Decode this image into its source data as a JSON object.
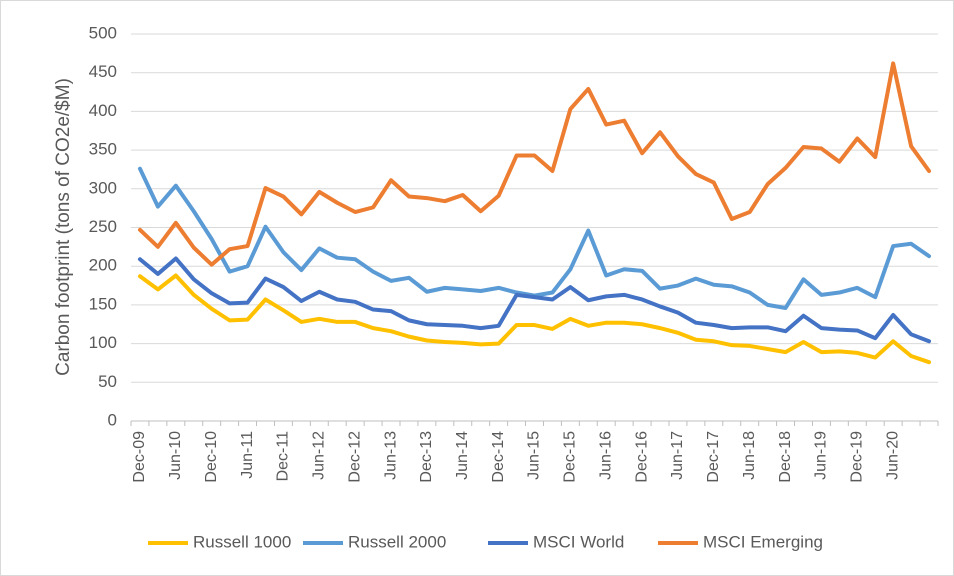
{
  "chart_data": {
    "type": "line",
    "y_label": "Carbon footprint (tons of CO2e/$M)",
    "categories": [
      "Dec-09",
      null,
      "Jun-10",
      null,
      "Dec-10",
      null,
      "Jun-11",
      null,
      "Dec-11",
      null,
      "Jun-12",
      null,
      "Dec-12",
      null,
      "Jun-13",
      null,
      "Dec-13",
      null,
      "Jun-14",
      null,
      "Dec-14",
      null,
      "Jun-15",
      null,
      "Dec-15",
      null,
      "Jun-16",
      null,
      "Dec-16",
      null,
      "Jun-17",
      null,
      "Dec-17",
      null,
      "Jun-18",
      null,
      "Dec-18",
      null,
      "Jun-19",
      null,
      "Dec-19",
      null,
      "Jun-20",
      null,
      null
    ],
    "series": [
      {
        "name": "Russell 1000",
        "color": "#FFC000",
        "values": [
          187,
          170,
          188,
          163,
          145,
          130,
          131,
          157,
          143,
          128,
          132,
          128,
          128,
          120,
          116,
          109,
          104,
          102,
          101,
          99,
          100,
          124,
          124,
          119,
          132,
          123,
          127,
          127,
          125,
          120,
          114,
          105,
          103,
          98,
          97,
          93,
          89,
          102,
          89,
          90,
          88,
          82,
          103,
          84,
          76
        ]
      },
      {
        "name": "Russell 2000",
        "color": "#5B9BD5",
        "values": [
          326,
          277,
          304,
          271,
          235,
          193,
          200,
          251,
          218,
          195,
          223,
          211,
          209,
          193,
          181,
          185,
          167,
          172,
          170,
          168,
          172,
          166,
          162,
          166,
          196,
          246,
          188,
          196,
          194,
          171,
          175,
          184,
          176,
          174,
          166,
          150,
          146,
          183,
          163,
          166,
          172,
          160,
          226,
          229,
          213
        ]
      },
      {
        "name": "MSCI World",
        "color": "#4472C4",
        "values": [
          209,
          190,
          210,
          183,
          165,
          152,
          153,
          184,
          173,
          155,
          167,
          157,
          154,
          144,
          142,
          130,
          125,
          124,
          123,
          120,
          123,
          163,
          160,
          157,
          173,
          156,
          161,
          163,
          157,
          148,
          140,
          127,
          124,
          120,
          121,
          121,
          116,
          136,
          120,
          118,
          117,
          107,
          137,
          112,
          103
        ]
      },
      {
        "name": "MSCI Emerging",
        "color": "#ED7D31",
        "values": [
          247,
          225,
          256,
          224,
          202,
          222,
          226,
          301,
          290,
          267,
          296,
          282,
          270,
          276,
          311,
          290,
          288,
          284,
          292,
          271,
          291,
          343,
          343,
          323,
          403,
          429,
          383,
          388,
          346,
          373,
          342,
          319,
          308,
          261,
          270,
          306,
          327,
          354,
          352,
          335,
          365,
          341,
          462,
          355,
          323
        ]
      }
    ],
    "ylim": [
      0,
      500
    ],
    "yticks": [
      0,
      50,
      100,
      150,
      200,
      250,
      300,
      350,
      400,
      450,
      500
    ],
    "grid": true,
    "legend": "bottom"
  }
}
